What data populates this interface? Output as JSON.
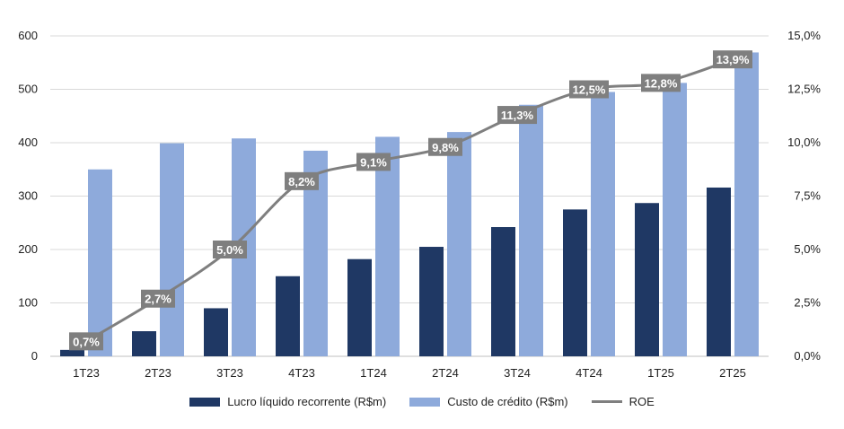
{
  "chart_data": {
    "type": "bar",
    "categories": [
      "1T23",
      "2T23",
      "3T23",
      "4T23",
      "1T24",
      "2T24",
      "3T24",
      "4T24",
      "1T25",
      "2T25"
    ],
    "series": [
      {
        "name": "Lucro líquido recorrente (R$m)",
        "type": "bar",
        "axis": "left",
        "color": "#1f3864",
        "values": [
          12,
          47,
          90,
          150,
          182,
          205,
          242,
          275,
          287,
          316
        ]
      },
      {
        "name": "Custo de crédito (R$m)",
        "type": "bar",
        "axis": "left",
        "color": "#8eaadb",
        "values": [
          350,
          399,
          408,
          385,
          411,
          420,
          471,
          495,
          512,
          569
        ]
      },
      {
        "name": "ROE",
        "type": "line",
        "axis": "right",
        "color": "#7f7f7f",
        "values": [
          0.7,
          2.7,
          5.0,
          8.2,
          9.1,
          9.8,
          11.3,
          12.5,
          12.8,
          13.9
        ],
        "labels": [
          "0,7%",
          "2,7%",
          "5,0%",
          "8,2%",
          "9,1%",
          "9,8%",
          "11,3%",
          "12,5%",
          "12,8%",
          "13,9%"
        ]
      }
    ],
    "y_left": {
      "ylim": [
        0,
        600
      ],
      "ticks": [
        "0",
        "100",
        "200",
        "300",
        "400",
        "500",
        "600"
      ]
    },
    "y_right": {
      "ylim": [
        0,
        15
      ],
      "ticks": [
        "0,0%",
        "2,5%",
        "5,0%",
        "7,5%",
        "10,0%",
        "12,5%",
        "15,0%"
      ]
    },
    "grid": true,
    "legend_position": "bottom",
    "label_box_color": "#7f7f7f",
    "grid_color": "#d9d9d9"
  }
}
